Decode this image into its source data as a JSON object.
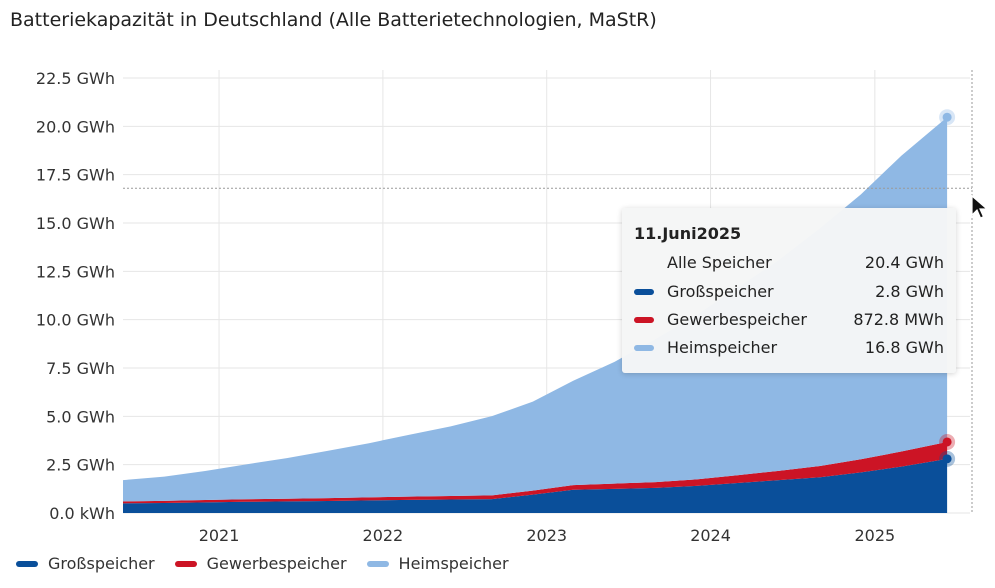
{
  "title": "Batteriekapazität in Deutschland (Alle Batterietechnologien, MaStR)",
  "chart_data": {
    "type": "area",
    "stacked": true,
    "title": "Batteriekapazität in Deutschland (Alle Batterietechnologien, MaStR)",
    "y_unit": "GWh",
    "ylim": [
      0,
      22.5
    ],
    "y_ticks": [
      "0.0 kWh",
      "2.5 GWh",
      "5.0 GWh",
      "7.5 GWh",
      "10.0 GWh",
      "12.5 GWh",
      "15.0 GWh",
      "17.5 GWh",
      "20.0 GWh",
      "22.5 GWh"
    ],
    "x_ticks": [
      "2021",
      "2022",
      "2023",
      "2024",
      "2025"
    ],
    "x": [
      "2020-06",
      "2020-09",
      "2020-12",
      "2021-03",
      "2021-06",
      "2021-09",
      "2021-12",
      "2022-03",
      "2022-06",
      "2022-09",
      "2022-12",
      "2023-03",
      "2023-06",
      "2023-09",
      "2023-12",
      "2024-03",
      "2024-06",
      "2024-09",
      "2024-12",
      "2025-03",
      "2025-06-11"
    ],
    "series": [
      {
        "name": "Großspeicher",
        "color": "#0a4f9a",
        "values": [
          0.5,
          0.52,
          0.55,
          0.58,
          0.6,
          0.62,
          0.65,
          0.68,
          0.7,
          0.72,
          0.95,
          1.2,
          1.25,
          1.3,
          1.4,
          1.55,
          1.7,
          1.85,
          2.1,
          2.4,
          2.8
        ]
      },
      {
        "name": "Gewerbespeicher",
        "color": "#cc1425",
        "values": [
          0.1,
          0.11,
          0.12,
          0.13,
          0.14,
          0.15,
          0.16,
          0.17,
          0.18,
          0.19,
          0.21,
          0.24,
          0.27,
          0.3,
          0.34,
          0.4,
          0.48,
          0.58,
          0.68,
          0.78,
          0.8728
        ]
      },
      {
        "name": "Heimspeicher",
        "color": "#8fb8e4",
        "values": [
          1.1,
          1.25,
          1.5,
          1.8,
          2.1,
          2.45,
          2.8,
          3.2,
          3.6,
          4.1,
          4.6,
          5.4,
          6.3,
          7.4,
          8.5,
          9.7,
          10.9,
          12.3,
          13.7,
          15.3,
          16.8
        ]
      }
    ],
    "legend": "bottom-left",
    "grid": true
  },
  "tooltip": {
    "date": "11.Juni2025",
    "rows": [
      {
        "label": "Alle Speicher",
        "value": "20.4 GWh",
        "color": ""
      },
      {
        "label": "Großspeicher",
        "value": "2.8 GWh",
        "color": "#0a4f9a"
      },
      {
        "label": "Gewerbespeicher",
        "value": "872.8 MWh",
        "color": "#cc1425"
      },
      {
        "label": "Heimspeicher",
        "value": "16.8 GWh",
        "color": "#8fb8e4"
      }
    ]
  },
  "legend": [
    {
      "label": "Großspeicher",
      "color": "#0a4f9a"
    },
    {
      "label": "Gewerbespeicher",
      "color": "#cc1425"
    },
    {
      "label": "Heimspeicher",
      "color": "#8fb8e4"
    }
  ]
}
